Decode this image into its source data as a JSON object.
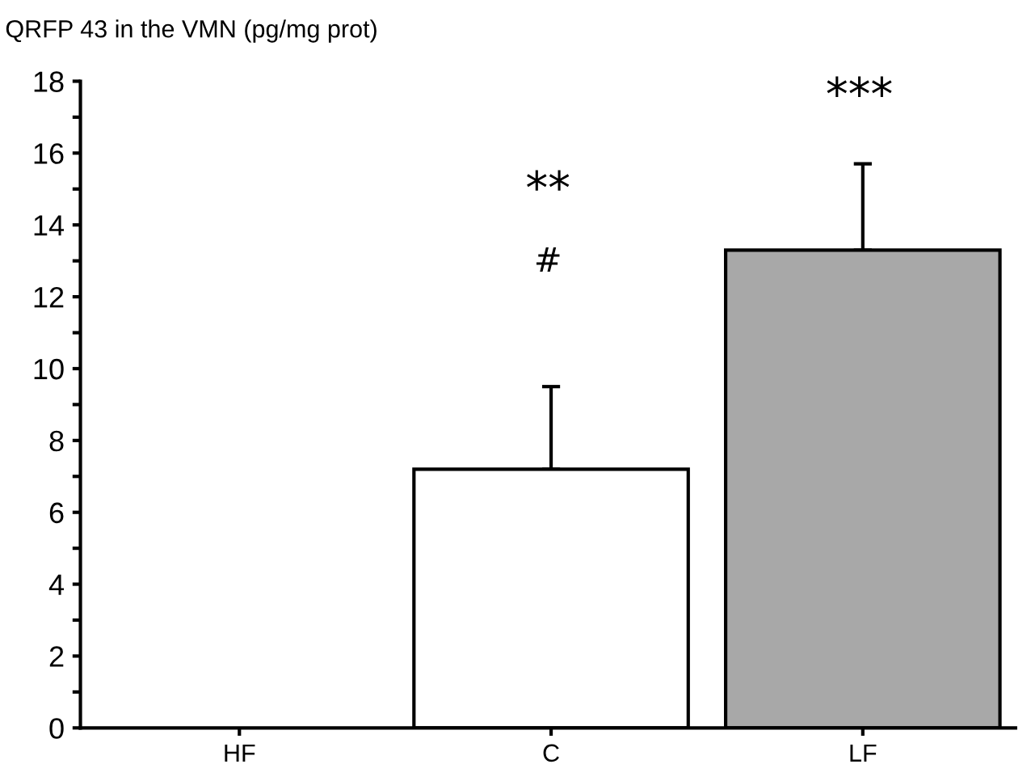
{
  "chart_data": {
    "type": "bar",
    "ylabel": "QRFP 43 in the VMN (pg/mg prot)",
    "categories": [
      "HF",
      "C",
      "LF"
    ],
    "values": [
      null,
      7.2,
      13.3
    ],
    "colors": [
      "#ffffff",
      "#ffffff",
      "#a8a8a8"
    ],
    "errors": [
      null,
      [
        7.2,
        9.5
      ],
      [
        13.3,
        15.7
      ]
    ],
    "ylim": [
      0,
      18
    ],
    "yticks": [
      0,
      {
        "value": 1,
        "label": null
      },
      2,
      {
        "value": 3,
        "label": null
      },
      4,
      {
        "value": 5,
        "label": null
      },
      6,
      {
        "value": 7,
        "label": null
      },
      8,
      {
        "value": 9,
        "label": null
      },
      10,
      {
        "value": 11,
        "label": null
      },
      12,
      {
        "value": 13,
        "label": null
      },
      14,
      {
        "value": 15,
        "label": null
      },
      16,
      {
        "value": 17,
        "label": null
      },
      18
    ],
    "annotations": [
      "**",
      "#",
      "***"
    ],
    "grid": false,
    "legend": false
  }
}
